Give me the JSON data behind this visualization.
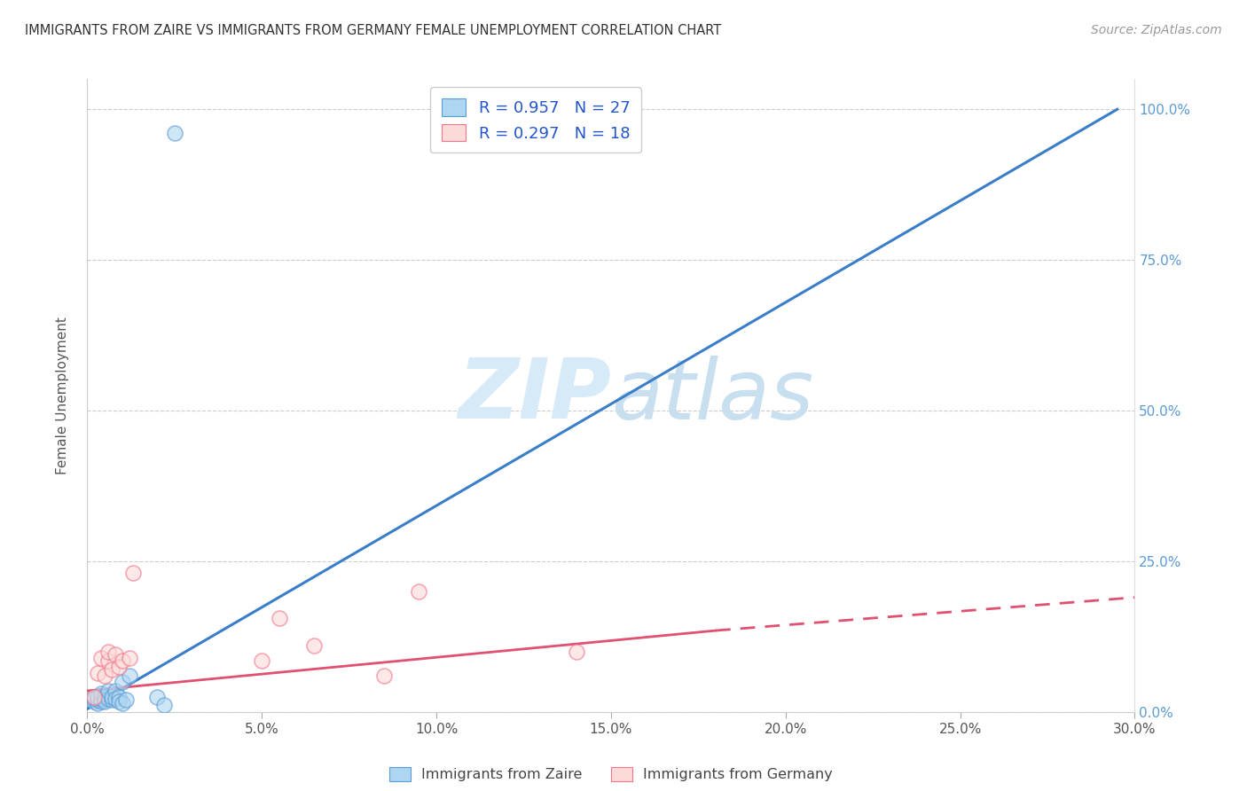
{
  "title": "IMMIGRANTS FROM ZAIRE VS IMMIGRANTS FROM GERMANY FEMALE UNEMPLOYMENT CORRELATION CHART",
  "source": "Source: ZipAtlas.com",
  "ylabel": "Female Unemployment",
  "x_tick_labels": [
    "0.0%",
    "5.0%",
    "10.0%",
    "15.0%",
    "20.0%",
    "25.0%",
    "30.0%"
  ],
  "y_tick_labels": [
    "0.0%",
    "25.0%",
    "50.0%",
    "75.0%",
    "100.0%"
  ],
  "xlim": [
    0.0,
    0.3
  ],
  "ylim": [
    0.0,
    1.05
  ],
  "legend1_text": "R = 0.957   N = 27",
  "legend2_text": "R = 0.297   N = 18",
  "legend_bottom1": "Immigrants from Zaire",
  "legend_bottom2": "Immigrants from Germany",
  "blue_color": "#5B9BD5",
  "pink_color": "#F4748C",
  "watermark_color": "#D6EAF8",
  "zaire_scatter_x": [
    0.001,
    0.002,
    0.002,
    0.003,
    0.003,
    0.003,
    0.004,
    0.004,
    0.004,
    0.005,
    0.005,
    0.005,
    0.006,
    0.006,
    0.007,
    0.007,
    0.008,
    0.008,
    0.009,
    0.009,
    0.01,
    0.01,
    0.011,
    0.012,
    0.02,
    0.022,
    0.025
  ],
  "zaire_scatter_y": [
    0.02,
    0.018,
    0.022,
    0.015,
    0.02,
    0.025,
    0.018,
    0.022,
    0.03,
    0.02,
    0.025,
    0.018,
    0.022,
    0.035,
    0.02,
    0.025,
    0.035,
    0.022,
    0.025,
    0.018,
    0.05,
    0.015,
    0.02,
    0.06,
    0.025,
    0.012,
    0.96
  ],
  "germany_scatter_x": [
    0.002,
    0.003,
    0.004,
    0.005,
    0.006,
    0.006,
    0.007,
    0.008,
    0.009,
    0.01,
    0.012,
    0.013,
    0.05,
    0.055,
    0.065,
    0.085,
    0.095,
    0.14
  ],
  "germany_scatter_y": [
    0.025,
    0.065,
    0.09,
    0.06,
    0.085,
    0.1,
    0.07,
    0.095,
    0.075,
    0.085,
    0.09,
    0.23,
    0.085,
    0.155,
    0.11,
    0.06,
    0.2,
    0.1
  ],
  "zaire_line_x": [
    0.0,
    0.295
  ],
  "zaire_line_y": [
    0.005,
    1.0
  ],
  "germany_solid_line_x": [
    0.0,
    0.18
  ],
  "germany_solid_line_y": [
    0.035,
    0.135
  ],
  "germany_dashed_line_x": [
    0.18,
    0.3
  ],
  "germany_dashed_line_y": [
    0.135,
    0.19
  ]
}
